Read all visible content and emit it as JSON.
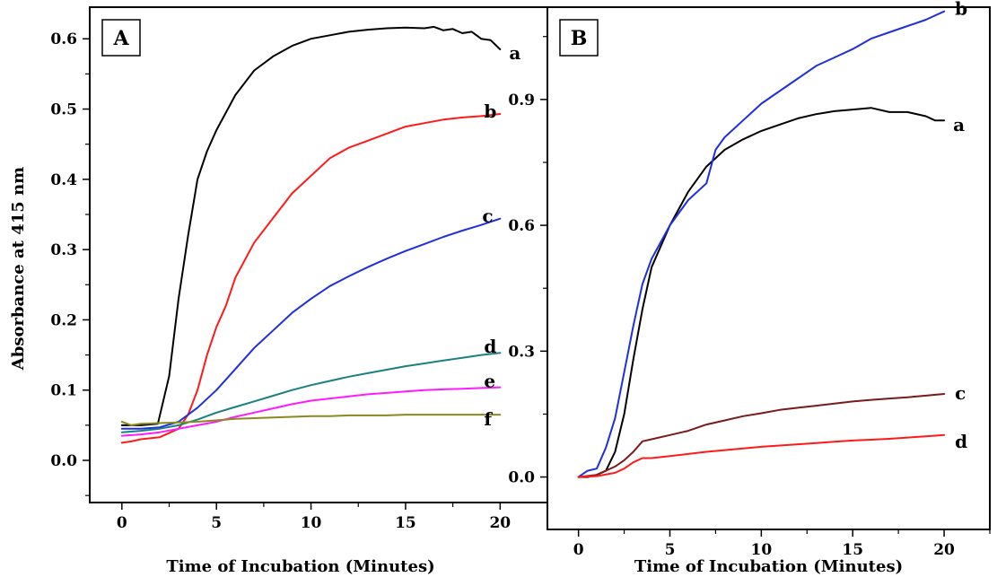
{
  "chart_data": [
    {
      "type": "line",
      "panel_label": "A",
      "xlabel": "Time of Incubation (Minutes)",
      "ylabel": "Absorbance at 415 nm",
      "xlim": [
        -1.7,
        22.5
      ],
      "ylim": [
        -0.06,
        0.645
      ],
      "x_ticks": [
        0,
        5,
        10,
        15,
        20
      ],
      "y_ticks": [
        0.0,
        0.1,
        0.2,
        0.3,
        0.4,
        0.5,
        0.6
      ],
      "y_tick_labels": [
        "0.0",
        "0.1",
        "0.2",
        "0.3",
        "0.4",
        "0.5",
        "0.6"
      ],
      "grid": false,
      "series": [
        {
          "name": "a",
          "color": "#000000",
          "x": [
            0,
            1,
            1.9,
            2.5,
            3,
            3.5,
            4,
            4.5,
            5,
            6,
            7,
            8,
            9,
            10,
            11,
            12,
            13,
            14,
            15,
            16,
            16.5,
            17,
            17.5,
            18,
            18.5,
            19,
            19.5,
            20
          ],
          "y": [
            0.05,
            0.05,
            0.052,
            0.12,
            0.23,
            0.32,
            0.4,
            0.44,
            0.47,
            0.52,
            0.555,
            0.575,
            0.59,
            0.6,
            0.605,
            0.61,
            0.613,
            0.615,
            0.616,
            0.615,
            0.617,
            0.612,
            0.614,
            0.608,
            0.61,
            0.6,
            0.598,
            0.585
          ]
        },
        {
          "name": "b",
          "color": "#ff1a1a",
          "x": [
            0,
            0.5,
            1,
            2,
            3,
            3.5,
            4,
            4.5,
            5,
            5.5,
            6,
            7,
            8,
            9,
            10,
            11,
            12,
            13,
            14,
            15,
            16,
            17,
            18,
            19,
            20
          ],
          "y": [
            0.025,
            0.027,
            0.03,
            0.033,
            0.045,
            0.065,
            0.1,
            0.15,
            0.19,
            0.22,
            0.26,
            0.31,
            0.345,
            0.38,
            0.405,
            0.43,
            0.445,
            0.455,
            0.465,
            0.475,
            0.48,
            0.485,
            0.488,
            0.49,
            0.493
          ]
        },
        {
          "name": "c",
          "color": "#1f2fe0",
          "x": [
            0,
            1,
            2,
            3,
            4,
            5,
            6,
            7,
            8,
            9,
            10,
            11,
            12,
            13,
            14,
            15,
            16,
            17,
            18,
            19,
            20
          ],
          "y": [
            0.045,
            0.045,
            0.047,
            0.055,
            0.075,
            0.1,
            0.13,
            0.16,
            0.185,
            0.21,
            0.23,
            0.248,
            0.262,
            0.275,
            0.287,
            0.298,
            0.308,
            0.318,
            0.327,
            0.335,
            0.344
          ]
        },
        {
          "name": "d",
          "color": "#1a8080",
          "x": [
            0,
            1,
            2,
            3,
            4,
            5,
            6,
            7,
            8,
            9,
            10,
            11,
            12,
            13,
            14,
            15,
            16,
            17,
            18,
            19,
            20
          ],
          "y": [
            0.04,
            0.042,
            0.045,
            0.05,
            0.058,
            0.068,
            0.076,
            0.084,
            0.092,
            0.1,
            0.107,
            0.113,
            0.119,
            0.124,
            0.129,
            0.134,
            0.138,
            0.142,
            0.146,
            0.15,
            0.153
          ]
        },
        {
          "name": "e",
          "color": "#ff1aff",
          "x": [
            0,
            1,
            2,
            3,
            4,
            5,
            6,
            7,
            8,
            9,
            10,
            11,
            12,
            13,
            14,
            15,
            16,
            17,
            18,
            19,
            20
          ],
          "y": [
            0.035,
            0.037,
            0.04,
            0.045,
            0.05,
            0.055,
            0.062,
            0.068,
            0.074,
            0.08,
            0.085,
            0.088,
            0.091,
            0.094,
            0.096,
            0.098,
            0.1,
            0.101,
            0.102,
            0.103,
            0.104
          ]
        },
        {
          "name": "f",
          "color": "#8a8a1f",
          "x": [
            0,
            0.5,
            1,
            2,
            3,
            4,
            5,
            6,
            7,
            8,
            9,
            10,
            11,
            12,
            13,
            14,
            15,
            16,
            17,
            18,
            19,
            20
          ],
          "y": [
            0.055,
            0.05,
            0.052,
            0.053,
            0.054,
            0.055,
            0.057,
            0.059,
            0.06,
            0.061,
            0.062,
            0.063,
            0.063,
            0.064,
            0.064,
            0.064,
            0.065,
            0.065,
            0.065,
            0.065,
            0.065,
            0.065
          ]
        }
      ]
    },
    {
      "type": "line",
      "panel_label": "B",
      "xlabel": "Time of Incubation (Minutes)",
      "ylabel": "",
      "xlim": [
        -1.7,
        22.5
      ],
      "ylim": [
        -0.125,
        1.12
      ],
      "x_ticks": [
        0,
        5,
        10,
        15,
        20
      ],
      "y_ticks": [
        0.0,
        0.3,
        0.6,
        0.9
      ],
      "y_tick_labels": [
        "0.0",
        "0.3",
        "0.6",
        "0.9"
      ],
      "grid": false,
      "series": [
        {
          "name": "a",
          "color": "#000000",
          "x": [
            0,
            0.5,
            1,
            1.5,
            2,
            2.5,
            3,
            3.5,
            4,
            5,
            6,
            7,
            8,
            9,
            10,
            11,
            12,
            13,
            14,
            15,
            16,
            17,
            18,
            19,
            19.5,
            20
          ],
          "y": [
            0,
            0,
            0.005,
            0.015,
            0.06,
            0.15,
            0.28,
            0.4,
            0.5,
            0.6,
            0.68,
            0.74,
            0.78,
            0.805,
            0.825,
            0.84,
            0.855,
            0.865,
            0.872,
            0.876,
            0.88,
            0.87,
            0.87,
            0.86,
            0.85,
            0.85
          ]
        },
        {
          "name": "b",
          "color": "#1f2fe0",
          "x": [
            0,
            0.5,
            1,
            1.5,
            2,
            2.5,
            3,
            3.5,
            4,
            5,
            6,
            7,
            7.5,
            8,
            9,
            10,
            11,
            12,
            13,
            14,
            15,
            16,
            17,
            18,
            19,
            20
          ],
          "y": [
            0,
            0.015,
            0.02,
            0.07,
            0.14,
            0.25,
            0.36,
            0.46,
            0.52,
            0.6,
            0.66,
            0.7,
            0.78,
            0.81,
            0.85,
            0.89,
            0.92,
            0.95,
            0.98,
            1.0,
            1.02,
            1.045,
            1.06,
            1.075,
            1.09,
            1.11
          ]
        },
        {
          "name": "c",
          "color": "#7a1a1a",
          "x": [
            0,
            1,
            2,
            2.5,
            3,
            3.5,
            4,
            5,
            6,
            7,
            8,
            9,
            10,
            11,
            12,
            13,
            14,
            15,
            16,
            17,
            18,
            19,
            20
          ],
          "y": [
            0,
            0.005,
            0.025,
            0.04,
            0.06,
            0.085,
            0.09,
            0.1,
            0.11,
            0.125,
            0.135,
            0.145,
            0.152,
            0.16,
            0.165,
            0.17,
            0.175,
            0.18,
            0.184,
            0.187,
            0.19,
            0.194,
            0.198
          ]
        },
        {
          "name": "d",
          "color": "#ff1a1a",
          "x": [
            0,
            1,
            2,
            2.5,
            3,
            3.5,
            4,
            5,
            6,
            7,
            8,
            9,
            10,
            11,
            12,
            13,
            14,
            15,
            16,
            17,
            18,
            19,
            20
          ],
          "y": [
            0,
            0.002,
            0.01,
            0.02,
            0.035,
            0.045,
            0.045,
            0.05,
            0.055,
            0.06,
            0.064,
            0.068,
            0.072,
            0.075,
            0.078,
            0.081,
            0.084,
            0.087,
            0.089,
            0.091,
            0.094,
            0.097,
            0.1
          ]
        }
      ]
    }
  ]
}
